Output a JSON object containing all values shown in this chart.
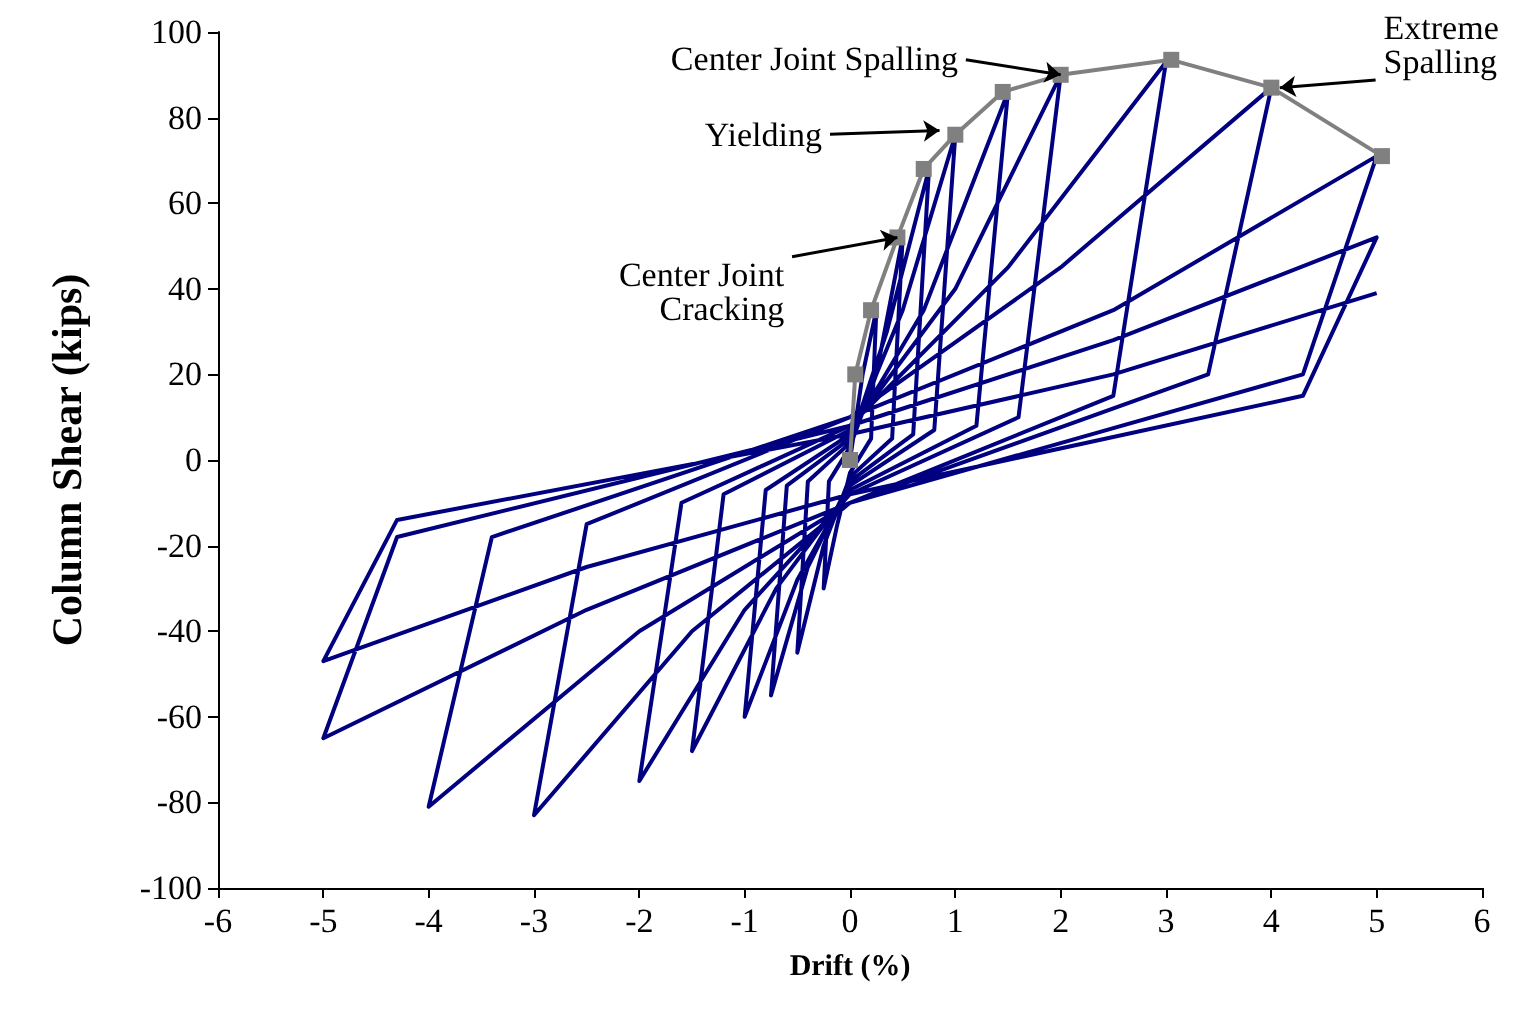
{
  "chart_data": {
    "type": "line",
    "xlabel": "Drift (%)",
    "ylabel": "Column Shear (kips)",
    "xlim": [
      -6,
      6
    ],
    "xticks": [
      -6,
      -5,
      -4,
      -3,
      -2,
      -1,
      0,
      1,
      2,
      3,
      4,
      5,
      6
    ],
    "ylim": [
      -100,
      100
    ],
    "yticks": [
      -100,
      -80,
      -60,
      -40,
      -20,
      0,
      20,
      40,
      60,
      80,
      100
    ],
    "grid": false,
    "series": [
      {
        "color": "#000080",
        "marker": "none",
        "x": [
          0,
          0.12,
          0.25,
          0.2,
          0,
          -0.12,
          -0.25,
          -0.2,
          0,
          0.25,
          0.5,
          0.4,
          0,
          -0.25,
          -0.5,
          -0.4,
          0,
          0.35,
          0.75,
          0.6,
          0,
          -0.4,
          -0.75,
          -0.6,
          0,
          0.5,
          1,
          0.8,
          0,
          -0.5,
          -1,
          -0.8,
          0,
          0.7,
          1.5,
          1.2,
          0,
          -0.7,
          -1.5,
          -1.2,
          0,
          1,
          2,
          1.6,
          0,
          -1,
          -2,
          -1.6,
          0,
          1.5,
          3,
          2.5,
          0,
          -1.5,
          -3,
          -2.5,
          0,
          2,
          4,
          3.4,
          0,
          -2,
          -4,
          -3.4,
          0,
          2.5,
          5,
          4.3,
          0,
          -2.5,
          -5,
          -4.3,
          0,
          2.5,
          5,
          4.3,
          0,
          -2.5,
          -5,
          -4.3,
          0,
          2.5,
          5
        ],
        "values": [
          0,
          20,
          35,
          5,
          -3,
          -15,
          -30,
          -5,
          3,
          20,
          52,
          5,
          -4,
          -20,
          -45,
          -5,
          4,
          30,
          68,
          6,
          -5,
          -25,
          -55,
          -6,
          5,
          35,
          76,
          7,
          -6,
          -28,
          -60,
          -7,
          6,
          35,
          86,
          8,
          -7,
          -30,
          -68,
          -8,
          7,
          40,
          90,
          10,
          -8,
          -35,
          -75,
          -10,
          8,
          45,
          93,
          15,
          -10,
          -40,
          -83,
          -15,
          10,
          45,
          87,
          20,
          -10,
          -40,
          -81,
          -18,
          10,
          35,
          71,
          20,
          -10,
          -35,
          -65,
          -18,
          8,
          28,
          52,
          15,
          -8,
          -25,
          -47,
          -14,
          6,
          20,
          39
        ]
      },
      {
        "color": "#808080",
        "marker": "square",
        "x": [
          0,
          0.05,
          0.2,
          0.45,
          0.7,
          1,
          1.45,
          2,
          3.05,
          4,
          5.05
        ],
        "values": [
          0,
          20,
          35,
          52,
          68,
          76,
          86,
          90,
          93.5,
          87,
          71
        ]
      }
    ],
    "annotations": [
      {
        "text": "Center Joint Spalling",
        "x": 2,
        "y": 90
      },
      {
        "text": "Yielding",
        "x": 0.85,
        "y": 77
      },
      {
        "text": "Center Joint\nCracking",
        "x": 0.45,
        "y": 52
      },
      {
        "text": "Extreme\nSpalling",
        "x": 4.08,
        "y": 87
      }
    ]
  }
}
